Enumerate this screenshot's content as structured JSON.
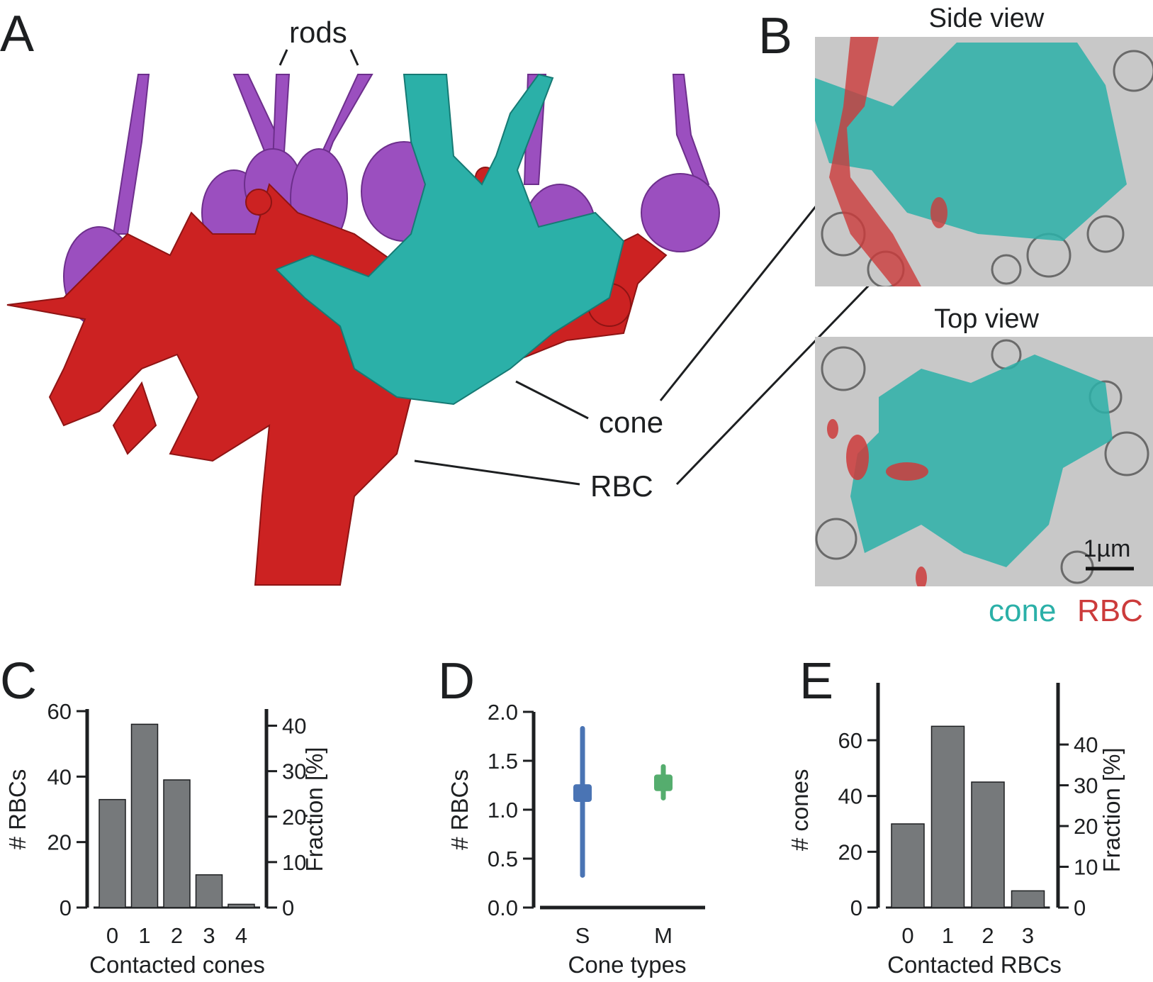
{
  "panels": {
    "a": "A",
    "b": "B",
    "c": "C",
    "d": "D",
    "e": "E"
  },
  "panel_a": {
    "rods_label": "rods",
    "cone_label": "cone",
    "rbc_label": "RBC"
  },
  "panel_b": {
    "side_view_title": "Side view",
    "top_view_title": "Top view",
    "scale_bar_label": "1µm",
    "legend_cone": "cone",
    "legend_rbc": "RBC"
  },
  "colors": {
    "cone": "#2bb0a8",
    "rbc": "#cc2222",
    "rod": "#9b4fbf",
    "bar": "#76797b",
    "s_cone": "#4a74b4",
    "m_cone": "#55ad6e",
    "em_gray": "#c8c8c8"
  },
  "chart_data": [
    {
      "id": "C",
      "type": "bar",
      "categories": [
        "0",
        "1",
        "2",
        "3",
        "4"
      ],
      "values": [
        33,
        56,
        39,
        10,
        1
      ],
      "xlabel": "Contacted cones",
      "ylabel": "# RBCs",
      "ylabel_right": "Fraction [%]",
      "ylim": [
        0,
        60
      ],
      "yticks": [
        "0",
        "20",
        "40",
        "60"
      ],
      "ylim_right": [
        0,
        43.2
      ],
      "yticks_right": [
        "0",
        "10",
        "20",
        "30",
        "40"
      ]
    },
    {
      "id": "D",
      "type": "errorbar",
      "categories": [
        "S",
        "M"
      ],
      "mean": [
        1.17,
        1.28
      ],
      "box_low": [
        1.08,
        1.19
      ],
      "box_high": [
        1.26,
        1.36
      ],
      "whisker_low": [
        0.33,
        1.12
      ],
      "whisker_high": [
        1.83,
        1.44
      ],
      "xlabel": "Cone types",
      "ylabel": "# RBCs",
      "ylim": [
        0,
        2.0
      ],
      "yticks": [
        "0.0",
        "0.5",
        "1.0",
        "1.5",
        "2.0"
      ]
    },
    {
      "id": "E",
      "type": "bar",
      "categories": [
        "0",
        "1",
        "2",
        "3"
      ],
      "values": [
        30,
        65,
        45,
        6
      ],
      "xlabel": "Contacted RBCs",
      "ylabel": "# cones",
      "ylabel_right": "Fraction [%]",
      "ylim": [
        0,
        70
      ],
      "yticks": [
        "0",
        "20",
        "40",
        "60"
      ],
      "ylim_right": [
        0,
        47.9
      ],
      "yticks_right": [
        "0",
        "10",
        "20",
        "30",
        "40"
      ]
    }
  ]
}
